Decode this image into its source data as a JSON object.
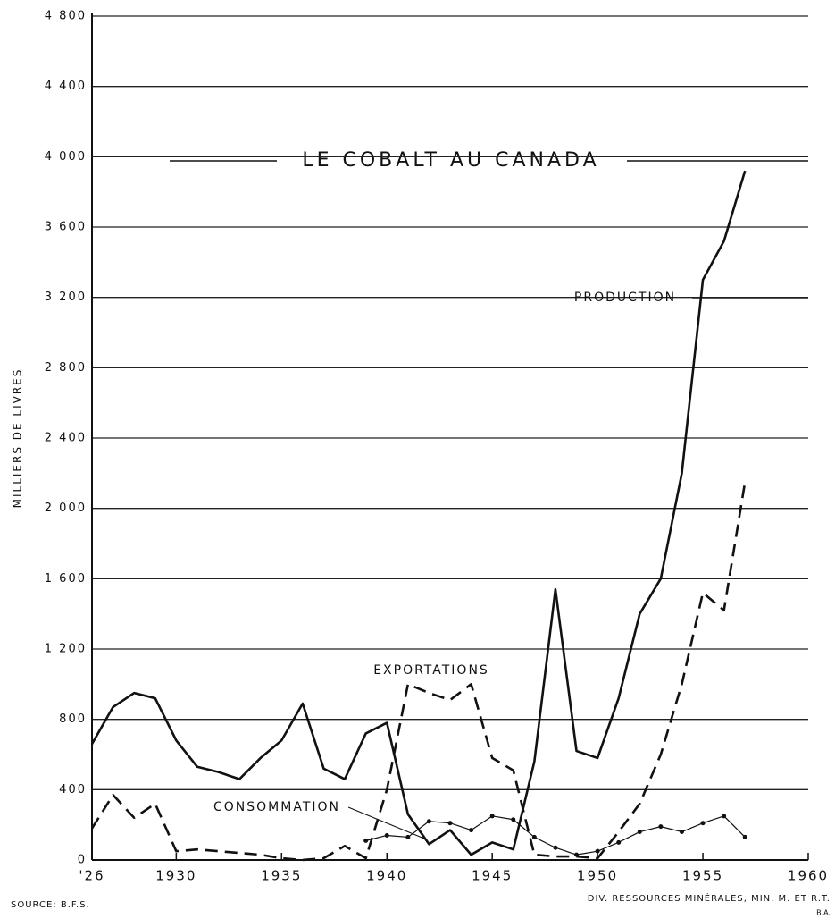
{
  "chart_data": {
    "type": "line",
    "title": "LE COBALT AU CANADA",
    "y_label": "MILLIERS DE LIVRES",
    "annotations": [
      "PRODUCTION",
      "EXPORTATIONS",
      "CONSOMMATION"
    ],
    "source": "SOURCE: B.F.S.",
    "credit": [
      "DIV. RESSOURCES MINÉRALES, MIN. M. ET R.T.",
      "B.A."
    ],
    "x": [
      1926,
      1927,
      1928,
      1929,
      1930,
      1931,
      1932,
      1933,
      1934,
      1935,
      1936,
      1937,
      1938,
      1939,
      1940,
      1941,
      1942,
      1943,
      1944,
      1945,
      1946,
      1947,
      1948,
      1949,
      1950,
      1951,
      1952,
      1953,
      1954,
      1955,
      1956,
      1957
    ],
    "series": [
      {
        "name": "PRODUCTION",
        "color": "#111111",
        "style": "solid",
        "values": [
          660,
          870,
          950,
          920,
          680,
          530,
          500,
          460,
          580,
          680,
          890,
          520,
          460,
          720,
          780,
          260,
          90,
          170,
          30,
          100,
          60,
          560,
          1540,
          620,
          580,
          920,
          1400,
          1600,
          2200,
          3300,
          3520,
          3920
        ]
      },
      {
        "name": "EXPORTATIONS",
        "color": "#111111",
        "style": "dashed",
        "values": [
          180,
          370,
          240,
          320,
          50,
          60,
          50,
          40,
          30,
          10,
          0,
          10,
          80,
          10,
          400,
          1000,
          950,
          910,
          1000,
          580,
          510,
          30,
          20,
          20,
          10,
          160,
          320,
          600,
          1000,
          1520,
          1420,
          2150
        ]
      },
      {
        "name": "CONSOMMATION",
        "color": "#111111",
        "style": "markers",
        "values": [
          null,
          null,
          null,
          null,
          null,
          null,
          null,
          null,
          null,
          null,
          null,
          null,
          null,
          110,
          140,
          130,
          220,
          210,
          170,
          250,
          230,
          130,
          70,
          30,
          50,
          100,
          160,
          190,
          160,
          210,
          250,
          130
        ]
      }
    ],
    "xlim": [
      1926,
      1960
    ],
    "xticks": [
      {
        "value": 1926,
        "label": "'26"
      },
      1930,
      1935,
      1940,
      1945,
      1950,
      1955,
      1960
    ],
    "ylim": [
      0,
      4800
    ],
    "yticks": [
      0,
      {
        "value": 400,
        "label": "400"
      },
      {
        "value": 800,
        "label": "800"
      },
      {
        "value": 1200,
        "label": "1 200"
      },
      {
        "value": 1600,
        "label": "1 600"
      },
      {
        "value": 2000,
        "label": "2 000"
      },
      {
        "value": 2400,
        "label": "2 400"
      },
      {
        "value": 2800,
        "label": "2 800"
      },
      {
        "value": 3200,
        "label": "3 200"
      },
      {
        "value": 3600,
        "label": "3 600"
      },
      {
        "value": 4000,
        "label": "4 000"
      },
      {
        "value": 4400,
        "label": "4 400"
      },
      {
        "value": 4800,
        "label": "4 800"
      }
    ],
    "grid": true
  }
}
